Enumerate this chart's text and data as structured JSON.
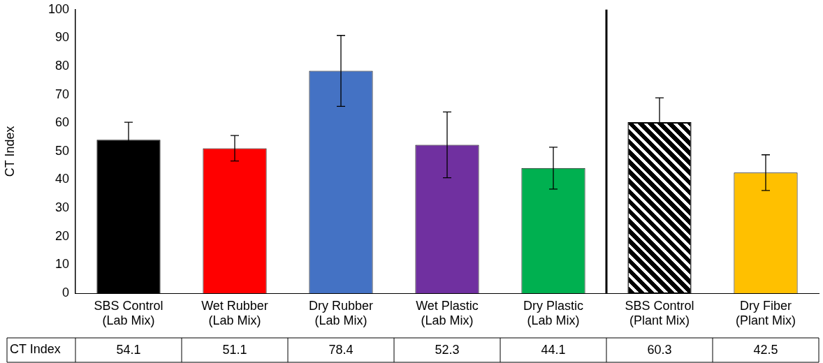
{
  "chart_data": {
    "type": "bar",
    "ylabel": "CT Index",
    "categories": [
      "SBS Control\n(Lab Mix)",
      "Wet Rubber\n(Lab Mix)",
      "Dry Rubber\n(Lab Mix)",
      "Wet Plastic\n(Lab Mix)",
      "Dry Plastic\n(Lab Mix)",
      "SBS Control\n(Plant Mix)",
      "Dry Fiber\n(Plant Mix)"
    ],
    "series": [
      {
        "name": "CT Index",
        "colors": [
          "#000000",
          "#ff0000",
          "#4472c4",
          "#7030a0",
          "#00b050",
          "#000000",
          "#ffc000"
        ],
        "values": [
          54.1,
          51.1,
          78.4,
          52.3,
          44.1,
          60.3,
          42.5
        ],
        "errors": [
          6.2,
          4.5,
          12.5,
          11.6,
          7.4,
          8.6,
          6.3
        ]
      }
    ],
    "ylim": [
      0,
      100
    ],
    "yticks": [
      0,
      10,
      20,
      30,
      40,
      50,
      60,
      70,
      80,
      90,
      100
    ],
    "data_labels": true,
    "grid": false,
    "legend": "bottom left"
  }
}
